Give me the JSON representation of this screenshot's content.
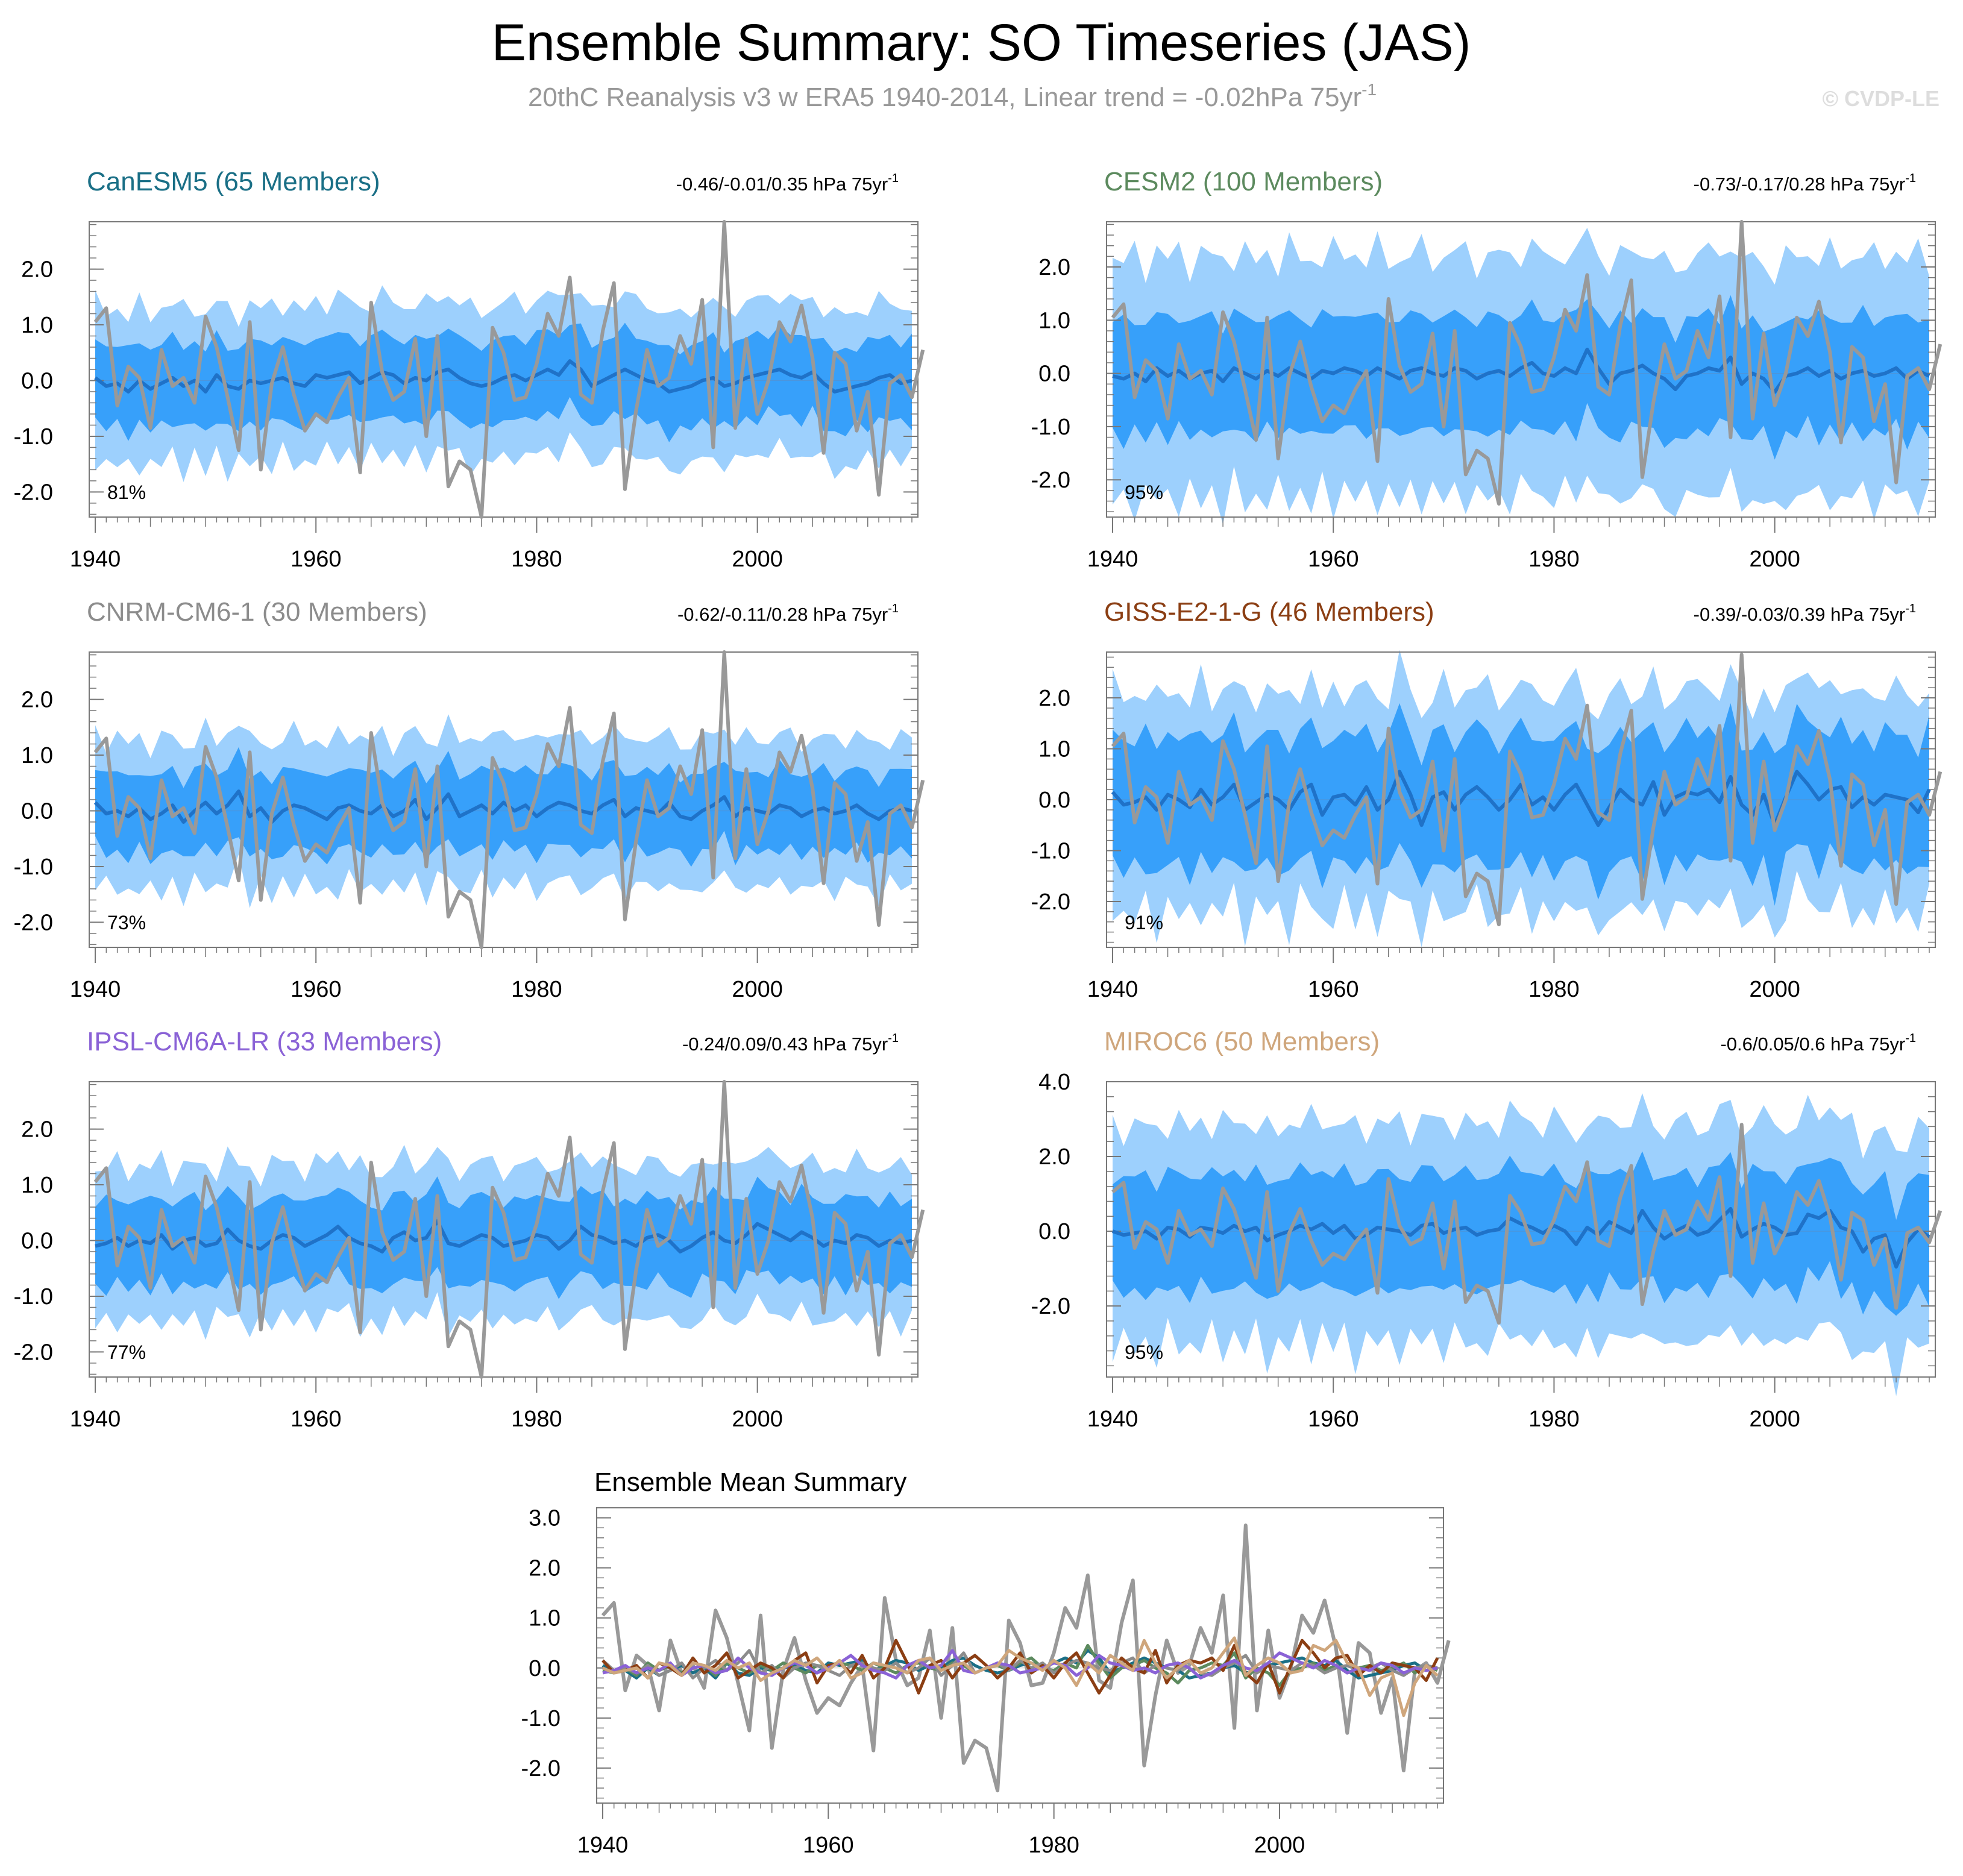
{
  "figure": {
    "title": "Ensemble Summary: SO Timeseries (JAS)",
    "subtitle": "20thC Reanalysis v3 w ERA5 1940-2014, Linear trend = -0.02hPa 75yr",
    "subtitle_sup": "-1",
    "watermark": "© CVDP-LE"
  },
  "colors": {
    "band_outer": "#9dd0fd",
    "band_inner": "#37a0fa",
    "ens_mean": "#1f72c8",
    "obs": "#999999",
    "axis": "#777777"
  },
  "chart_data": [
    {
      "type": "area",
      "title": "CanESM5 (65 Members)",
      "title_color": "#1a6f86",
      "trend": "-0.46/-0.01/0.35 hPa 75yr",
      "trend_sup": "-1",
      "pct": "81%",
      "outer_amp": 1.35,
      "inner_amp": 0.72,
      "phase": 0,
      "ylim": [
        -2.45,
        2.85
      ],
      "yticks": [
        -2.0,
        -1.0,
        0.0,
        1.0,
        2.0
      ],
      "ytick_labels": [
        "-2.0",
        "-1.0",
        "0.0",
        "1.0",
        "2.0"
      ]
    },
    {
      "type": "area",
      "title": "CESM2 (100 Members)",
      "title_color": "#5c8a5e",
      "trend": "-0.73/-0.17/0.28 hPa 75yr",
      "trend_sup": "-1",
      "pct": "95%",
      "outer_amp": 2.2,
      "inner_amp": 1.05,
      "phase": 1,
      "ylim": [
        -2.7,
        2.85
      ],
      "yticks": [
        -2.0,
        -1.0,
        0.0,
        1.0,
        2.0
      ],
      "ytick_labels": [
        "-2.0",
        "-1.0",
        "0.0",
        "1.0",
        "2.0"
      ]
    },
    {
      "type": "area",
      "title": "CNRM-CM6-1 (30 Members)",
      "title_color": "#8c8c8c",
      "trend": "-0.62/-0.11/0.28 hPa 75yr",
      "trend_sup": "-1",
      "pct": "73%",
      "outer_amp": 1.3,
      "inner_amp": 0.7,
      "phase": 2,
      "ylim": [
        -2.45,
        2.85
      ],
      "yticks": [
        -2.0,
        -1.0,
        0.0,
        1.0,
        2.0
      ],
      "ytick_labels": [
        "-2.0",
        "-1.0",
        "0.0",
        "1.0",
        "2.0"
      ]
    },
    {
      "type": "area",
      "title": "GISS-E2-1-G (46 Members)",
      "title_color": "#8b3e13",
      "trend": "-0.39/-0.03/0.39 hPa 75yr",
      "trend_sup": "-1",
      "pct": "91%",
      "outer_amp": 2.1,
      "inner_amp": 1.25,
      "phase": 3,
      "ylim": [
        -2.9,
        2.9
      ],
      "yticks": [
        -2.0,
        -1.0,
        0.0,
        1.0,
        2.0
      ],
      "ytick_labels": [
        "-2.0",
        "-1.0",
        "0.0",
        "1.0",
        "2.0"
      ]
    },
    {
      "type": "area",
      "title": "IPSL-CM6A-LR (33 Members)",
      "title_color": "#8a62d6",
      "trend": "-0.24/0.09/0.43 hPa 75yr",
      "trend_sup": "-1",
      "pct": "77%",
      "outer_amp": 1.35,
      "inner_amp": 0.75,
      "phase": 4,
      "ylim": [
        -2.45,
        2.85
      ],
      "yticks": [
        -2.0,
        -1.0,
        0.0,
        1.0,
        2.0
      ],
      "ytick_labels": [
        "-2.0",
        "-1.0",
        "0.0",
        "1.0",
        "2.0"
      ]
    },
    {
      "type": "area",
      "title": "MIROC6 (50 Members)",
      "title_color": "#cfa67c",
      "trend": "-0.6/0.05/0.6 hPa 75yr",
      "trend_sup": "-1",
      "pct": "95%",
      "outer_amp": 2.85,
      "inner_amp": 1.5,
      "phase": 5,
      "ylim": [
        -3.9,
        4.0
      ],
      "yticks": [
        -2.0,
        0.0,
        2.0,
        4.0
      ],
      "ytick_labels": [
        "-2.0",
        "0.0",
        "2.0",
        "4.0"
      ]
    }
  ],
  "summary_chart": {
    "type": "line",
    "title": "Ensemble Mean Summary",
    "ylim": [
      -2.7,
      3.2
    ],
    "yticks": [
      -2.0,
      -1.0,
      0.0,
      1.0,
      2.0,
      3.0
    ],
    "ytick_labels": [
      "-2.0",
      "-1.0",
      "0.0",
      "1.0",
      "2.0",
      "3.0"
    ],
    "series_colors": [
      "#1a6f86",
      "#5c8a5e",
      "#8c8c8c",
      "#8b3e13",
      "#8a62d6",
      "#cfa67c"
    ],
    "obs_color": "#999999"
  },
  "x": {
    "start": 1940,
    "end": 2014,
    "xticks": [
      1940,
      1960,
      1980,
      2000
    ],
    "xtick_labels": [
      "1940",
      "1960",
      "1980",
      "2000"
    ]
  },
  "observed": [
    1.05,
    1.3,
    -0.45,
    0.25,
    0.05,
    -0.85,
    0.55,
    -0.1,
    0.05,
    -0.4,
    1.15,
    0.6,
    -0.3,
    -1.25,
    1.05,
    -1.6,
    -0.05,
    0.6,
    -0.25,
    -0.9,
    -0.6,
    -0.75,
    -0.3,
    0.05,
    -1.65,
    1.4,
    0.15,
    -0.35,
    -0.2,
    0.75,
    -1.0,
    0.8,
    -1.9,
    -1.45,
    -1.6,
    -2.45,
    0.95,
    0.5,
    -0.35,
    -0.3,
    0.3,
    1.2,
    0.8,
    1.85,
    -0.25,
    -0.4,
    0.9,
    1.75,
    -1.95,
    -0.55,
    0.55,
    -0.1,
    0.05,
    0.8,
    0.3,
    1.45,
    -1.2,
    2.85,
    -0.85,
    0.75,
    -0.6,
    0.0,
    1.05,
    0.7,
    1.35,
    0.4,
    -1.3,
    0.5,
    0.3,
    -0.9,
    -0.2,
    -2.05,
    -0.05,
    0.1,
    -0.3,
    0.55
  ],
  "ens_means": [
    [
      0.05,
      -0.1,
      -0.05,
      -0.2,
      0.0,
      -0.15,
      -0.05,
      0.05,
      -0.1,
      0.0,
      -0.2,
      0.1,
      -0.1,
      -0.15,
      0.0,
      -0.05,
      0.0,
      0.05,
      -0.05,
      -0.1,
      0.1,
      0.05,
      0.1,
      0.15,
      -0.05,
      0.05,
      0.15,
      0.1,
      -0.05,
      0.05,
      0.0,
      0.15,
      0.2,
      0.05,
      -0.05,
      -0.1,
      -0.05,
      0.05,
      0.1,
      0.0,
      0.1,
      0.2,
      0.1,
      0.35,
      0.2,
      -0.1,
      0.0,
      0.1,
      0.2,
      0.1,
      0.0,
      -0.05,
      -0.2,
      -0.15,
      -0.1,
      0.0,
      0.05,
      -0.1,
      -0.05,
      0.05,
      0.1,
      0.15,
      0.2,
      0.1,
      0.05,
      0.15,
      -0.05,
      -0.2,
      -0.15,
      -0.1,
      -0.05,
      0.05,
      0.1,
      -0.05,
      0.0
    ],
    [
      -0.05,
      -0.1,
      0.0,
      -0.15,
      0.1,
      -0.05,
      0.05,
      -0.1,
      0.0,
      0.05,
      -0.15,
      0.1,
      0.0,
      -0.1,
      0.05,
      -0.05,
      0.1,
      0.0,
      -0.1,
      0.05,
      0.0,
      0.1,
      0.05,
      -0.05,
      0.1,
      0.0,
      -0.1,
      0.05,
      0.1,
      0.0,
      -0.05,
      0.1,
      0.05,
      -0.1,
      0.0,
      0.05,
      -0.05,
      0.1,
      0.2,
      0.0,
      -0.05,
      0.1,
      0.0,
      0.45,
      0.1,
      -0.2,
      0.0,
      0.05,
      0.15,
      0.0,
      -0.1,
      -0.3,
      -0.05,
      0.0,
      0.1,
      0.05,
      0.3,
      -0.2,
      0.0,
      -0.1,
      -0.35,
      -0.05,
      0.0,
      0.1,
      -0.05,
      0.05,
      -0.1,
      0.0,
      0.05,
      -0.05,
      0.0,
      0.1,
      -0.1,
      0.05,
      -0.05
    ],
    [
      0.15,
      -0.05,
      0.0,
      -0.1,
      0.05,
      -0.15,
      -0.05,
      0.1,
      -0.2,
      0.0,
      0.15,
      -0.05,
      0.1,
      0.35,
      -0.1,
      0.05,
      -0.2,
      0.0,
      0.1,
      0.05,
      -0.05,
      -0.15,
      0.05,
      0.1,
      0.0,
      -0.05,
      0.1,
      -0.1,
      0.0,
      0.2,
      -0.15,
      0.05,
      0.3,
      -0.1,
      0.0,
      0.1,
      -0.05,
      0.15,
      0.0,
      0.1,
      -0.1,
      0.05,
      0.15,
      0.1,
      0.0,
      -0.05,
      0.1,
      0.2,
      -0.1,
      0.05,
      0.0,
      -0.05,
      0.15,
      -0.1,
      -0.15,
      0.0,
      0.1,
      0.25,
      -0.1,
      0.05,
      0.0,
      -0.05,
      0.1,
      0.05,
      -0.1,
      0.0,
      0.05,
      -0.05,
      0.0,
      0.1,
      -0.05,
      -0.15,
      0.0,
      0.05,
      0.0
    ],
    [
      0.15,
      -0.1,
      -0.05,
      0.05,
      -0.2,
      0.1,
      0.0,
      -0.15,
      0.2,
      -0.1,
      0.05,
      0.3,
      -0.2,
      -0.05,
      0.1,
      0.0,
      -0.2,
      0.15,
      0.3,
      -0.3,
      0.05,
      0.1,
      -0.1,
      0.25,
      -0.2,
      0.0,
      0.55,
      0.1,
      -0.5,
      0.05,
      0.15,
      -0.2,
      0.1,
      0.25,
      0.05,
      -0.2,
      0.0,
      0.3,
      -0.1,
      0.05,
      -0.2,
      0.1,
      0.3,
      -0.1,
      -0.5,
      -0.15,
      0.2,
      0.0,
      -0.1,
      0.35,
      -0.3,
      0.05,
      0.15,
      0.1,
      0.2,
      -0.05,
      0.45,
      -0.1,
      -0.3,
      0.1,
      -0.5,
      0.05,
      0.55,
      0.3,
      0.0,
      0.2,
      0.25,
      -0.15,
      0.05,
      -0.1,
      0.1,
      0.05,
      0.0,
      -0.25,
      0.2
    ],
    [
      -0.1,
      -0.05,
      0.05,
      -0.1,
      0.0,
      -0.05,
      0.1,
      -0.15,
      0.0,
      0.05,
      -0.1,
      -0.05,
      0.2,
      0.0,
      -0.1,
      -0.15,
      0.0,
      0.1,
      0.05,
      -0.1,
      0.0,
      0.1,
      0.25,
      0.05,
      -0.05,
      -0.1,
      -0.2,
      0.05,
      0.15,
      0.0,
      0.05,
      0.35,
      -0.05,
      -0.1,
      0.0,
      0.1,
      0.05,
      -0.1,
      -0.05,
      0.0,
      0.1,
      0.05,
      -0.15,
      0.0,
      0.25,
      0.1,
      0.05,
      -0.05,
      0.0,
      -0.1,
      0.05,
      0.1,
      0.0,
      -0.2,
      -0.1,
      0.05,
      0.15,
      0.0,
      -0.05,
      0.1,
      0.3,
      0.2,
      0.1,
      0.0,
      0.15,
      0.05,
      -0.1,
      0.0,
      -0.05,
      0.1,
      0.05,
      -0.1,
      0.0,
      -0.05,
      0.0
    ],
    [
      0.0,
      -0.1,
      -0.05,
      0.0,
      -0.2,
      0.1,
      0.05,
      -0.15,
      0.1,
      0.05,
      -0.05,
      0.15,
      0.0,
      0.1,
      -0.25,
      -0.1,
      0.0,
      0.15,
      0.05,
      0.2,
      -0.05,
      0.15,
      -0.2,
      -0.1,
      0.1,
      0.05,
      0.0,
      -0.1,
      0.15,
      0.2,
      -0.05,
      0.05,
      0.1,
      -0.1,
      0.0,
      0.05,
      0.35,
      0.2,
      0.1,
      -0.05,
      0.15,
      0.0,
      -0.35,
      0.1,
      -0.1,
      0.25,
      0.1,
      -0.05,
      0.55,
      0.1,
      -0.2,
      0.0,
      0.15,
      -0.1,
      0.0,
      0.3,
      0.6,
      -0.15,
      0.05,
      0.2,
      0.1,
      -0.1,
      -0.05,
      0.45,
      0.35,
      0.55,
      0.1,
      0.0,
      -0.55,
      -0.2,
      -0.1,
      -0.95,
      -0.3,
      0.05,
      -0.15
    ]
  ]
}
